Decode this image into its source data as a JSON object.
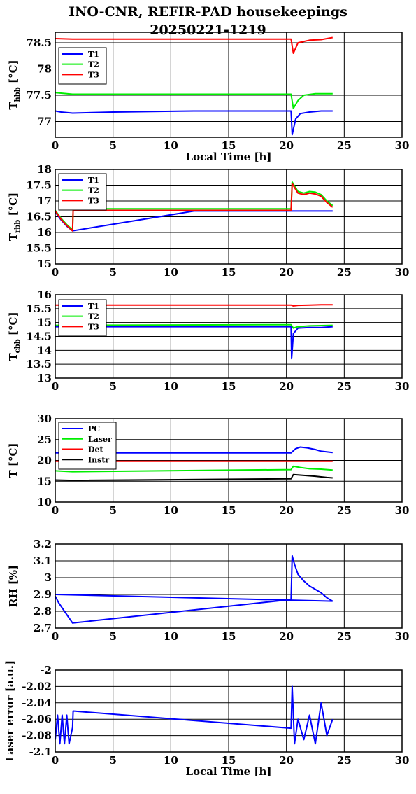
{
  "title_line1": "INO-CNR, REFIR-PAD housekeepings",
  "title_line2": "20250221-1219",
  "colors": {
    "T1": "#0000ff",
    "T2": "#00ee00",
    "T3": "#ff0000",
    "PC": "#0000ff",
    "Laser": "#00ee00",
    "Det": "#ff0000",
    "Instr": "#000000"
  },
  "chart_data": [
    {
      "type": "line",
      "ylabel": "T_hbb [°C]",
      "xlabel": "Local Time [h]",
      "xlim": [
        0,
        30
      ],
      "xticks": [
        "0",
        "5",
        "10",
        "15",
        "20",
        "25",
        "30"
      ],
      "ylim": [
        76.7,
        78.7
      ],
      "yticks": [
        "77",
        "77.5",
        "78",
        "78.5"
      ],
      "grid": true,
      "legend": "top-left",
      "series": [
        {
          "name": "T1",
          "x": [
            0,
            0.5,
            1.0,
            1.5,
            5.0,
            12.0,
            20.4,
            20.5,
            20.8,
            21.2,
            22.0,
            23.0,
            24.0
          ],
          "y": [
            77.2,
            77.18,
            77.17,
            77.16,
            77.18,
            77.2,
            77.2,
            76.75,
            77.05,
            77.15,
            77.18,
            77.2,
            77.2
          ]
        },
        {
          "name": "T2",
          "x": [
            0,
            1.5,
            20.4,
            20.6,
            21.0,
            21.5,
            22.5,
            24.0
          ],
          "y": [
            77.55,
            77.52,
            77.52,
            77.25,
            77.4,
            77.5,
            77.53,
            77.53
          ]
        },
        {
          "name": "T3",
          "x": [
            0,
            1.5,
            20.4,
            20.6,
            21.0,
            22.0,
            23.0,
            24.0
          ],
          "y": [
            78.58,
            78.57,
            78.57,
            78.3,
            78.5,
            78.55,
            78.56,
            78.6
          ]
        }
      ]
    },
    {
      "type": "line",
      "ylabel": "T_rbb [°C]",
      "xlabel": "",
      "xlim": [
        0,
        30
      ],
      "xticks": [
        "0",
        "5",
        "10",
        "15",
        "20",
        "25",
        "30"
      ],
      "ylim": [
        15,
        18
      ],
      "yticks": [
        "15",
        "15.5",
        "16",
        "16.5",
        "17",
        "17.5",
        "18"
      ],
      "grid": true,
      "legend": "top-left",
      "series": [
        {
          "name": "T1",
          "x": [
            0,
            0.5,
            1.0,
            1.5,
            12.0,
            20.4,
            20.5,
            24.0
          ],
          "y": [
            16.65,
            16.4,
            16.2,
            16.05,
            16.68,
            16.68,
            16.68,
            16.68
          ]
        },
        {
          "name": "T2",
          "x": [
            0,
            0.5,
            1.0,
            1.5,
            1.55,
            20.4,
            20.5,
            21.0,
            21.5,
            22.0,
            22.5,
            23.0,
            23.5,
            24.0
          ],
          "y": [
            16.7,
            16.45,
            16.25,
            16.08,
            16.75,
            16.75,
            17.6,
            17.3,
            17.25,
            17.3,
            17.28,
            17.2,
            17.0,
            16.85
          ]
        },
        {
          "name": "T3",
          "x": [
            0,
            0.5,
            1.0,
            1.5,
            1.55,
            20.4,
            20.5,
            21.0,
            21.5,
            22.0,
            22.5,
            23.0,
            23.5,
            24.0
          ],
          "y": [
            16.68,
            16.42,
            16.22,
            16.05,
            16.7,
            16.7,
            17.55,
            17.25,
            17.2,
            17.25,
            17.22,
            17.15,
            16.95,
            16.8
          ]
        }
      ]
    },
    {
      "type": "line",
      "ylabel": "T_cbb [°C]",
      "xlabel": "",
      "xlim": [
        0,
        30
      ],
      "xticks": [
        "0",
        "5",
        "10",
        "15",
        "20",
        "25",
        "30"
      ],
      "ylim": [
        13,
        16
      ],
      "yticks": [
        "13",
        "13.5",
        "14",
        "14.5",
        "15",
        "15.5",
        "16"
      ],
      "grid": true,
      "legend": "top-left",
      "series": [
        {
          "name": "T1",
          "x": [
            0,
            1.5,
            20.4,
            20.45,
            20.6,
            21.0,
            22.0,
            23.0,
            24.0
          ],
          "y": [
            14.85,
            14.85,
            14.85,
            13.7,
            14.6,
            14.8,
            14.82,
            14.82,
            14.85
          ]
        },
        {
          "name": "T2",
          "x": [
            0,
            1.5,
            18.0,
            20.4,
            20.6,
            21.0,
            22.0,
            24.0
          ],
          "y": [
            14.9,
            14.9,
            14.92,
            14.92,
            14.8,
            14.85,
            14.88,
            14.9
          ]
        },
        {
          "name": "T3",
          "x": [
            0,
            1.5,
            20.4,
            20.6,
            21.0,
            22.0,
            23.0,
            24.0
          ],
          "y": [
            15.63,
            15.63,
            15.63,
            15.6,
            15.62,
            15.63,
            15.64,
            15.64
          ]
        }
      ]
    },
    {
      "type": "line",
      "ylabel": "T [°C]",
      "xlabel": "",
      "xlim": [
        0,
        30
      ],
      "xticks": [
        "0",
        "5",
        "10",
        "15",
        "20",
        "25",
        "30"
      ],
      "ylim": [
        10,
        30
      ],
      "yticks": [
        "10",
        "15",
        "20",
        "25",
        "30"
      ],
      "grid": true,
      "legend": "top-left",
      "series": [
        {
          "name": "PC",
          "x": [
            0,
            1.5,
            20.4,
            20.8,
            21.2,
            21.8,
            22.5,
            23.0,
            24.0
          ],
          "y": [
            21.8,
            21.8,
            21.8,
            22.8,
            23.2,
            23.0,
            22.6,
            22.2,
            21.9
          ]
        },
        {
          "name": "Laser",
          "x": [
            0,
            1.5,
            20.4,
            20.6,
            21.2,
            22.0,
            23.0,
            24.0
          ],
          "y": [
            17.5,
            17.3,
            17.8,
            18.6,
            18.3,
            18.0,
            17.9,
            17.7
          ]
        },
        {
          "name": "Det",
          "x": [
            0,
            1.5,
            20.4,
            20.6,
            24.0
          ],
          "y": [
            19.8,
            19.8,
            19.8,
            19.8,
            19.8
          ]
        },
        {
          "name": "Instr",
          "x": [
            0,
            1.5,
            20.4,
            20.6,
            21.5,
            22.5,
            23.5,
            24.0
          ],
          "y": [
            15.3,
            15.2,
            15.6,
            16.6,
            16.4,
            16.2,
            15.9,
            15.8
          ]
        }
      ]
    },
    {
      "type": "line",
      "ylabel": "RH [%]",
      "xlabel": "",
      "xlim": [
        0,
        30
      ],
      "xticks": [
        "0",
        "5",
        "10",
        "15",
        "20",
        "25",
        "30"
      ],
      "ylim": [
        2.7,
        3.2
      ],
      "yticks": [
        "2.7",
        "2.8",
        "2.9",
        "3",
        "3.1",
        "3.2"
      ],
      "grid": true,
      "legend": "",
      "series": [
        {
          "x": [
            0,
            0.3,
            0.6,
            0.9,
            1.2,
            1.5,
            20.4,
            20.5,
            20.7,
            21.0,
            21.5,
            22.0,
            22.5,
            23.0,
            23.5,
            24.0
          ],
          "y": [
            2.89,
            2.85,
            2.82,
            2.79,
            2.76,
            2.73,
            2.87,
            3.13,
            3.08,
            3.02,
            2.98,
            2.95,
            2.93,
            2.91,
            2.88,
            2.86
          ]
        },
        {
          "x": [
            0,
            24.0
          ],
          "y": [
            2.9,
            2.86
          ]
        }
      ]
    },
    {
      "type": "line",
      "ylabel": "Laser error [a.u.]",
      "xlabel": "Local Time [h]",
      "xlim": [
        0,
        30
      ],
      "xticks": [
        "0",
        "5",
        "10",
        "15",
        "20",
        "25",
        "30"
      ],
      "ylim": [
        -2.1,
        -2
      ],
      "yticks": [
        "-2.1",
        "-2.08",
        "-2.06",
        "-2.04",
        "-2.02",
        "-2"
      ],
      "grid": true,
      "legend": "",
      "series": [
        {
          "x": [
            0,
            0.2,
            0.4,
            0.6,
            0.8,
            1.0,
            1.2,
            1.5,
            1.55,
            20.4,
            20.5,
            20.7,
            21.0,
            21.5,
            22.0,
            22.5,
            23.0,
            23.5,
            24.0
          ],
          "y": [
            -2.085,
            -2.055,
            -2.09,
            -2.055,
            -2.09,
            -2.055,
            -2.09,
            -2.07,
            -2.05,
            -2.071,
            -2.02,
            -2.09,
            -2.06,
            -2.085,
            -2.055,
            -2.09,
            -2.04,
            -2.08,
            -2.06
          ]
        }
      ]
    }
  ]
}
